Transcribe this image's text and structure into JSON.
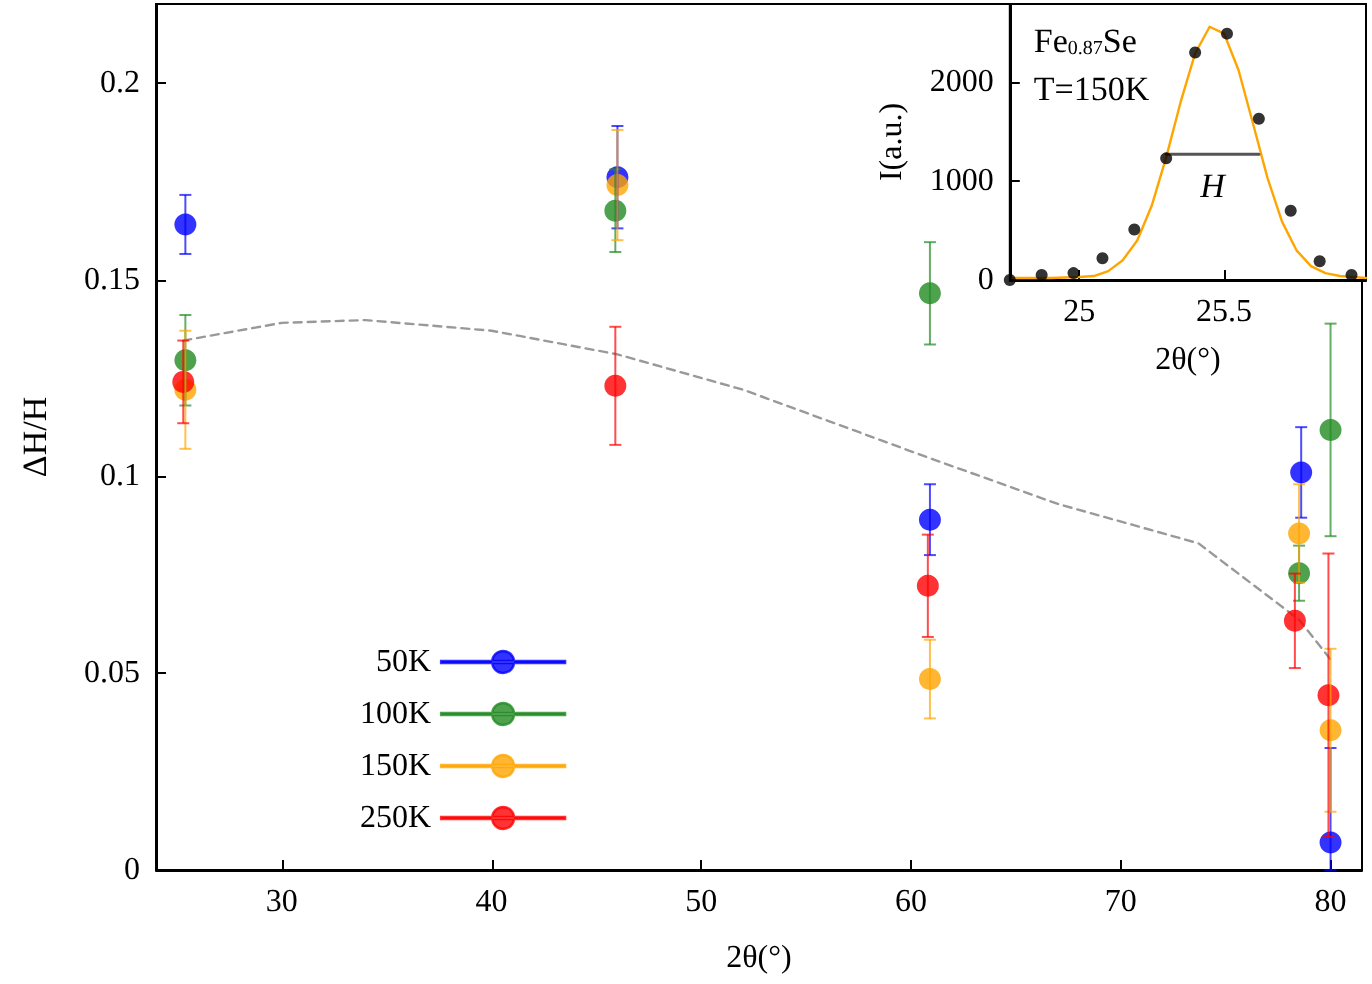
{
  "chart_data": [
    {
      "type": "scatter",
      "xlabel": "2θ(°)",
      "ylabel": "ΔH/H",
      "xlim": [
        24,
        81.5
      ],
      "xticks": [
        30,
        40,
        50,
        60,
        70,
        80
      ],
      "ylim": [
        0,
        0.22
      ],
      "yticks": [
        0,
        0.05,
        0.1,
        0.15,
        0.2
      ],
      "grid": false,
      "legend": "bottom left",
      "marker": "circle",
      "series": [
        {
          "name": "50K",
          "color": "#0000ff",
          "x": [
            25.4,
            46.0,
            60.9,
            78.6,
            80.0
          ],
          "values": [
            0.164,
            0.176,
            0.089,
            0.101,
            0.007
          ],
          "errors": [
            0.0075,
            0.013,
            0.009,
            0.0115,
            [
              0,
              0.031
            ]
          ]
        },
        {
          "name": "100K",
          "color": "#228b22",
          "x": [
            25.4,
            45.9,
            60.9,
            78.5,
            80.0
          ],
          "values": [
            0.1295,
            0.1675,
            0.1465,
            0.0754,
            0.1118
          ],
          "errors": [
            0.0115,
            0.0105,
            0.013,
            0.007,
            0.027
          ]
        },
        {
          "name": "150K",
          "color": "#ffa500",
          "x": [
            25.4,
            46.0,
            60.9,
            78.5,
            80.0
          ],
          "values": [
            0.122,
            0.174,
            0.0485,
            0.0855,
            0.0355
          ],
          "errors": [
            0.015,
            0.014,
            0.01,
            0.0125,
            0.0207
          ]
        },
        {
          "name": "250K",
          "color": "#ff0000",
          "x": [
            25.3,
            45.9,
            60.8,
            78.3,
            79.9
          ],
          "values": [
            0.124,
            0.123,
            0.0722,
            0.0633,
            0.0444
          ],
          "errors": [
            0.0105,
            0.015,
            0.013,
            0.012,
            0.036
          ]
        },
        {
          "type": "line",
          "color": "#999999",
          "line_style": "dashed",
          "marker": "none",
          "x": [
            25.3,
            30,
            34,
            40,
            46,
            52,
            60.7,
            67,
            73.7,
            78.5,
            80
          ],
          "values": [
            0.1345,
            0.139,
            0.1397,
            0.137,
            0.131,
            0.122,
            0.105,
            0.093,
            0.083,
            0.0636,
            0.0535
          ]
        }
      ]
    },
    {
      "type": "scatter",
      "xlabel": "2θ(°)",
      "ylabel": "I(a.u.)",
      "xlim": [
        24.76,
        25.99
      ],
      "xticks": [
        25,
        25.5
      ],
      "ylim": [
        0,
        2790
      ],
      "yticks": [
        0,
        1000,
        2000
      ],
      "grid": false,
      "legend": false,
      "marker": "circle",
      "annotations": [
        "Fe$_{0.87}$Se",
        "T=150K"
      ],
      "series": [
        {
          "type": "line",
          "color": "#ffa500",
          "marker": "none",
          "x": [
            24.77,
            24.9,
            25.0,
            25.05,
            25.1,
            25.15,
            25.2,
            25.25,
            25.3,
            25.35,
            25.4,
            25.45,
            25.5,
            25.55,
            25.6,
            25.65,
            25.7,
            25.75,
            25.8,
            25.85,
            25.9,
            25.99
          ],
          "values": [
            20,
            20,
            30,
            40,
            90,
            200,
            400,
            750,
            1240,
            1800,
            2290,
            2560,
            2490,
            2120,
            1580,
            1030,
            590,
            300,
            140,
            70,
            40,
            20
          ]
        },
        {
          "type": "line",
          "name": "H",
          "color": "#555555",
          "marker": "none",
          "x": [
            25.3,
            25.62
          ],
          "values": [
            1270,
            1270
          ]
        },
        {
          "color": "#000000",
          "x": [
            24.76,
            24.87,
            24.98,
            25.08,
            25.19,
            25.3,
            25.4,
            25.51,
            25.62,
            25.73,
            25.83,
            25.94
          ],
          "values": [
            0,
            50,
            70,
            220,
            510,
            1230,
            2300,
            2490,
            1630,
            700,
            190,
            50
          ]
        }
      ]
    }
  ]
}
